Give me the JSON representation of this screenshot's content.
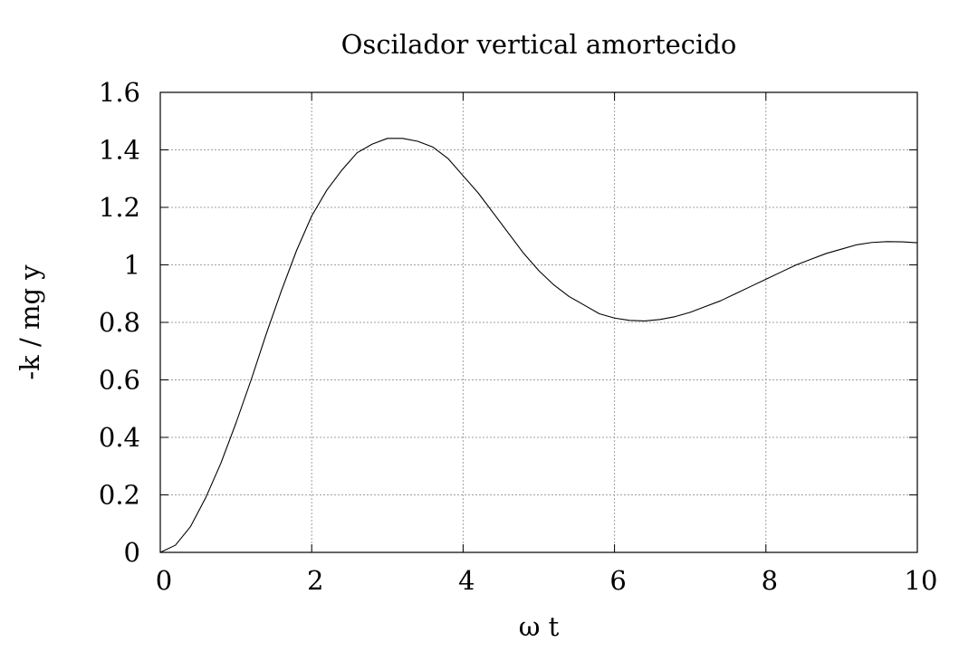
{
  "chart_data": {
    "type": "line",
    "title": "Oscilador vertical amortecido",
    "xlabel": "ω t",
    "ylabel": "-k / mg  y",
    "xlim": [
      0,
      10
    ],
    "ylim": [
      0,
      1.6
    ],
    "xticks": [
      "0",
      "2",
      "4",
      "6",
      "8",
      "10"
    ],
    "yticks": [
      "0",
      "0.2",
      "0.4",
      "0.6",
      "0.8",
      "1",
      "1.2",
      "1.4",
      "1.6"
    ],
    "grid": true,
    "legend": "none",
    "series": [
      {
        "color": "#000000",
        "x": [
          0,
          0.2,
          0.4,
          0.6,
          0.8,
          1.0,
          1.2,
          1.4,
          1.6,
          1.8,
          2.0,
          2.2,
          2.4,
          2.6,
          2.8,
          3.0,
          3.2,
          3.4,
          3.6,
          3.8,
          4.0,
          4.2,
          4.4,
          4.6,
          4.8,
          5.0,
          5.2,
          5.4,
          5.6,
          5.8,
          6.0,
          6.2,
          6.4,
          6.6,
          6.8,
          7.0,
          7.2,
          7.4,
          7.6,
          7.8,
          8.0,
          8.2,
          8.4,
          8.6,
          8.8,
          9.0,
          9.2,
          9.4,
          9.6,
          9.8,
          10.0
        ],
        "y": [
          0.0,
          0.025,
          0.09,
          0.19,
          0.31,
          0.45,
          0.6,
          0.76,
          0.91,
          1.05,
          1.17,
          1.26,
          1.33,
          1.39,
          1.42,
          1.44,
          1.44,
          1.43,
          1.41,
          1.37,
          1.31,
          1.25,
          1.18,
          1.11,
          1.04,
          0.98,
          0.93,
          0.89,
          0.86,
          0.83,
          0.815,
          0.807,
          0.805,
          0.81,
          0.82,
          0.835,
          0.855,
          0.875,
          0.9,
          0.925,
          0.95,
          0.975,
          1.0,
          1.02,
          1.04,
          1.055,
          1.07,
          1.078,
          1.081,
          1.08,
          1.077
        ]
      }
    ]
  }
}
